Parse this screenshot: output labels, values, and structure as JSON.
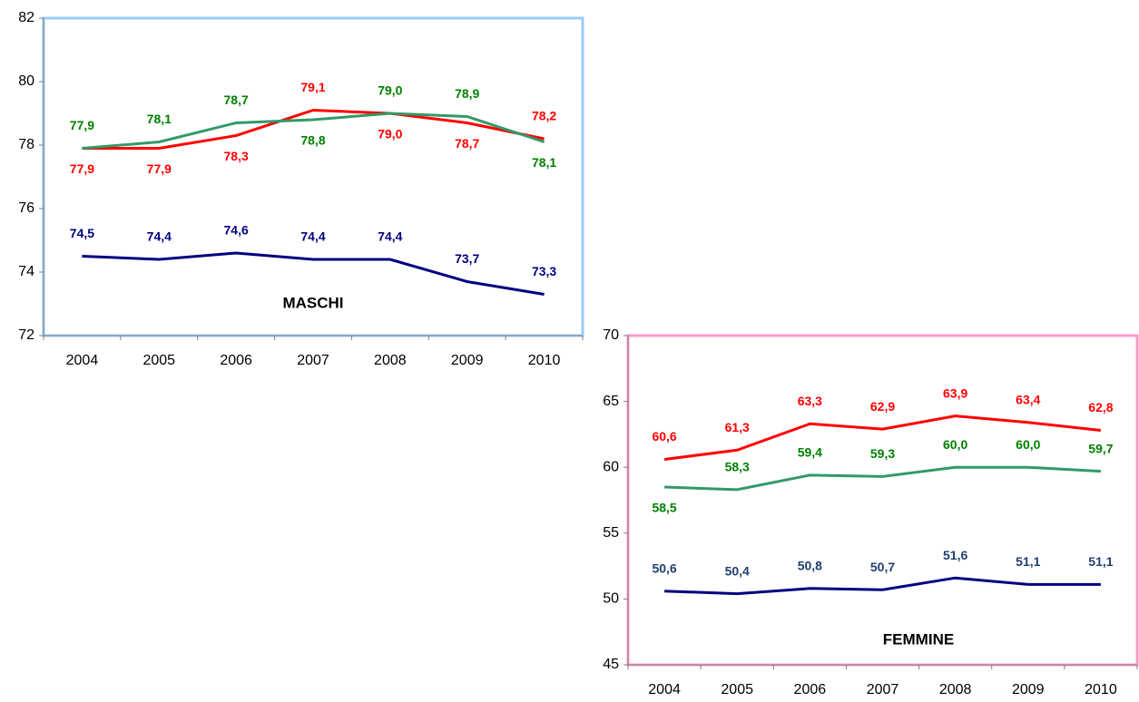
{
  "chart_data": [
    {
      "type": "line",
      "title": "MASCHI",
      "border_color": "#99ccff",
      "categories": [
        "2004",
        "2005",
        "2006",
        "2007",
        "2008",
        "2009",
        "2010"
      ],
      "ylim": [
        72,
        82
      ],
      "yticks": [
        72,
        74,
        76,
        78,
        80,
        82
      ],
      "series": [
        {
          "color": "#ff0000",
          "label_color": "#ff0000",
          "values": [
            77.9,
            77.9,
            78.3,
            79.1,
            79.0,
            78.7,
            78.2
          ],
          "value_labels": [
            "77,9",
            "77,9",
            "78,3",
            "79,1",
            "79,0",
            "78,7",
            "78,2"
          ]
        },
        {
          "color": "#339966",
          "label_color": "#008000",
          "values": [
            77.9,
            78.1,
            78.7,
            78.8,
            79.0,
            78.9,
            78.1
          ],
          "value_labels": [
            "77,9",
            "78,1",
            "78,7",
            "78,8",
            "79,0",
            "78,9",
            "78,1"
          ]
        },
        {
          "color": "#000080",
          "label_color": "#000080",
          "values": [
            74.5,
            74.4,
            74.6,
            74.4,
            74.4,
            73.7,
            73.3
          ],
          "value_labels": [
            "74,5",
            "74,4",
            "74,6",
            "74,4",
            "74,4",
            "73,7",
            "73,3"
          ]
        }
      ]
    },
    {
      "type": "line",
      "title": "FEMMINE",
      "border_color": "#ff99cc",
      "categories": [
        "2004",
        "2005",
        "2006",
        "2007",
        "2008",
        "2009",
        "2010"
      ],
      "ylim": [
        45,
        70
      ],
      "yticks": [
        45,
        50,
        55,
        60,
        65,
        70
      ],
      "series": [
        {
          "color": "#ff0000",
          "label_color": "#ff0000",
          "values": [
            60.6,
            61.3,
            63.3,
            62.9,
            63.9,
            63.4,
            62.8
          ],
          "value_labels": [
            "60,6",
            "61,3",
            "63,3",
            "62,9",
            "63,9",
            "63,4",
            "62,8"
          ]
        },
        {
          "color": "#339966",
          "label_color": "#008000",
          "values": [
            58.5,
            58.3,
            59.4,
            59.3,
            60.0,
            60.0,
            59.7
          ],
          "value_labels": [
            "58,5",
            "58,3",
            "59,4",
            "59,3",
            "60,0",
            "60,0",
            "59,7"
          ]
        },
        {
          "color": "#000080",
          "label_color": "#1f3f6f",
          "values": [
            50.6,
            50.4,
            50.8,
            50.7,
            51.6,
            51.1,
            51.1
          ],
          "value_labels": [
            "50,6",
            "50,4",
            "50,8",
            "50,7",
            "51,6",
            "51,1",
            "51,1"
          ]
        }
      ]
    }
  ]
}
